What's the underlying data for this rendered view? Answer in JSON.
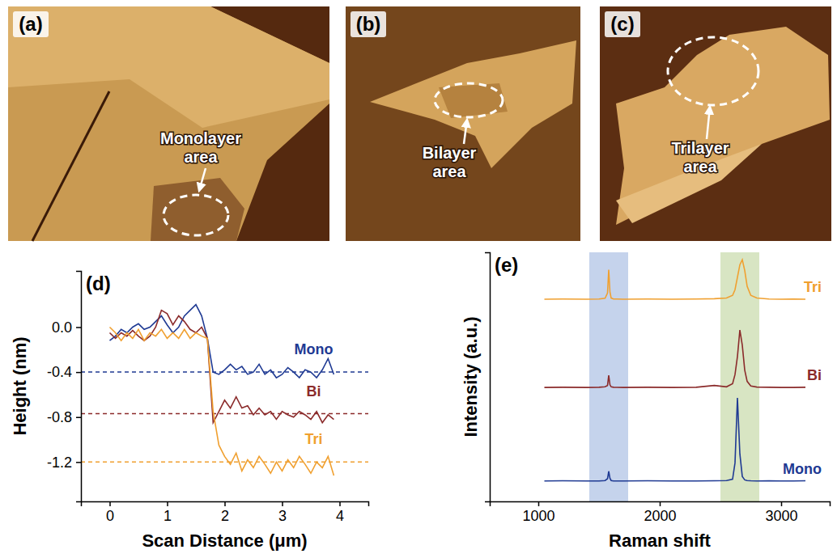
{
  "images": [
    {
      "label": "(a)",
      "annotation": "Monolayer area"
    },
    {
      "label": "(b)",
      "annotation": "Bilayer area"
    },
    {
      "label": "(c)",
      "annotation": "Trilayer area"
    }
  ],
  "chart_data": [
    {
      "type": "line",
      "label": "(d)",
      "x_label": "Scan Distance (μm)",
      "y_label": "Height (nm)",
      "xlim": [
        -0.5,
        4.5
      ],
      "xticks": [
        0,
        1,
        2,
        3,
        4
      ],
      "ylim": [
        -1.55,
        0.5
      ],
      "yticks": [
        {
          "value": 0,
          "label": "0.0"
        },
        -0.4,
        -0.8,
        -1.2
      ],
      "x": [
        0,
        0.1,
        0.2,
        0.3,
        0.4,
        0.5,
        0.6,
        0.7,
        0.8,
        0.9,
        1.0,
        1.1,
        1.2,
        1.3,
        1.4,
        1.5,
        1.6,
        1.7,
        1.8,
        1.9,
        2.0,
        2.1,
        2.2,
        2.3,
        2.4,
        2.5,
        2.6,
        2.7,
        2.8,
        2.9,
        3.0,
        3.1,
        3.2,
        3.3,
        3.4,
        3.5,
        3.6,
        3.7,
        3.8,
        3.9
      ],
      "series": [
        {
          "name": "Mono",
          "color": "#1f3a93",
          "level": -0.4,
          "values": [
            -0.12,
            -0.08,
            -0.02,
            -0.05,
            0,
            0.03,
            -0.02,
            0,
            0.05,
            0.1,
            0.02,
            -0.05,
            0,
            0.1,
            0.15,
            0.2,
            0.1,
            -0.1,
            -0.4,
            -0.42,
            -0.38,
            -0.33,
            -0.38,
            -0.35,
            -0.42,
            -0.4,
            -0.33,
            -0.42,
            -0.38,
            -0.45,
            -0.42,
            -0.36,
            -0.4,
            -0.45,
            -0.38,
            -0.4,
            -0.45,
            -0.38,
            -0.28,
            -0.42
          ]
        },
        {
          "name": "Bi",
          "color": "#8b2b2b",
          "level": -0.77,
          "values": [
            -0.05,
            -0.1,
            -0.05,
            -0.08,
            -0.03,
            -0.08,
            -0.12,
            -0.08,
            0,
            0.15,
            0.12,
            0.02,
            0.1,
            0.05,
            -0.02,
            -0.05,
            0,
            -0.1,
            -0.85,
            -0.75,
            -0.65,
            -0.72,
            -0.62,
            -0.72,
            -0.7,
            -0.78,
            -0.72,
            -0.78,
            -0.75,
            -0.82,
            -0.75,
            -0.78,
            -0.8,
            -0.75,
            -0.78,
            -0.82,
            -0.75,
            -0.85,
            -0.78,
            -0.82
          ]
        },
        {
          "name": "Tri",
          "color": "#f0a030",
          "level": -1.2,
          "values": [
            0,
            -0.05,
            -0.12,
            -0.05,
            -0.1,
            -0.02,
            -0.12,
            -0.05,
            -0.08,
            -0.02,
            -0.1,
            -0.05,
            -0.1,
            -0.02,
            -0.1,
            -0.05,
            -0.08,
            -0.1,
            -0.75,
            -1.05,
            -1.15,
            -1.22,
            -1.12,
            -1.28,
            -1.18,
            -1.25,
            -1.15,
            -1.22,
            -1.3,
            -1.2,
            -1.28,
            -1.18,
            -1.25,
            -1.15,
            -1.22,
            -1.3,
            -1.2,
            -1.25,
            -1.15,
            -1.32
          ]
        }
      ]
    },
    {
      "type": "line",
      "label": "(e)",
      "x_label": "Raman shift",
      "y_label": "Intensity (a.u.)",
      "xlim": [
        600,
        3400
      ],
      "xticks": [
        1000,
        2000,
        3000
      ],
      "ylim": [
        0,
        11
      ],
      "tick_labels": "x",
      "bands": [
        {
          "from": 1420,
          "to": 1740,
          "color": "#c5d3ec"
        },
        {
          "from": 2500,
          "to": 2820,
          "color": "#d8e5c3"
        }
      ],
      "x": [
        1050,
        1200,
        1400,
        1500,
        1550,
        1570,
        1580,
        1590,
        1600,
        1620,
        1700,
        1900,
        2100,
        2300,
        2450,
        2550,
        2600,
        2620,
        2640,
        2660,
        2680,
        2700,
        2720,
        2750,
        2800,
        2900,
        3000,
        3100,
        3200
      ],
      "series": [
        {
          "name": "Mono",
          "color": "#1f3a93",
          "values": [
            0.9,
            0.91,
            0.9,
            0.9,
            0.92,
            1.0,
            1.33,
            1.02,
            0.92,
            0.9,
            0.9,
            0.91,
            0.9,
            0.9,
            0.91,
            0.92,
            0.98,
            1.7,
            4.57,
            2.1,
            1.1,
            0.95,
            0.92,
            0.91,
            0.9,
            0.91,
            0.9,
            0.9,
            0.91
          ]
        },
        {
          "name": "Bi",
          "color": "#8b2b2b",
          "values": [
            5.03,
            5.04,
            5.03,
            5.04,
            5.06,
            5.12,
            5.57,
            5.15,
            5.06,
            5.04,
            5.03,
            5.04,
            5.03,
            5.04,
            5.12,
            5.06,
            5.2,
            5.6,
            6.4,
            7.57,
            6.9,
            5.8,
            5.3,
            5.1,
            5.05,
            5.04,
            5.03,
            5.03,
            5.04
          ]
        },
        {
          "name": "Tri",
          "color": "#f0a030",
          "values": [
            8.93,
            8.94,
            8.93,
            8.94,
            8.97,
            9.2,
            10.23,
            9.25,
            8.98,
            8.94,
            8.93,
            8.94,
            8.93,
            8.94,
            8.95,
            8.98,
            9.1,
            9.35,
            9.9,
            10.45,
            10.67,
            10.2,
            9.5,
            9.1,
            8.98,
            8.94,
            8.93,
            8.94,
            8.93
          ]
        }
      ]
    }
  ]
}
